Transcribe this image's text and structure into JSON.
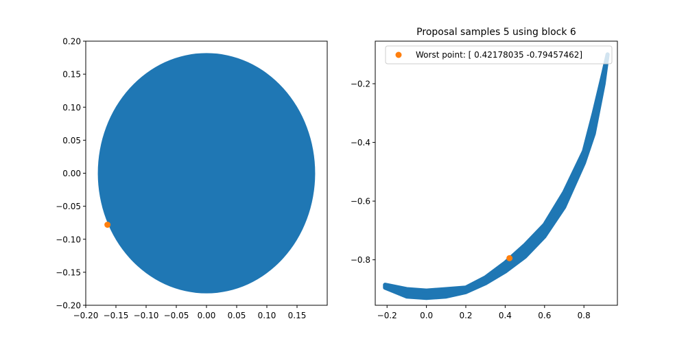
{
  "colors": {
    "background": "#ffffff",
    "scatter": "#1f77b4",
    "highlight": "#ff7f0e",
    "axes": "#000000",
    "legend_border": "#cccccc"
  },
  "chart_data": [
    {
      "type": "scatter",
      "title": "",
      "xlabel": "",
      "ylabel": "",
      "xlim": [
        -0.2,
        0.2
      ],
      "ylim": [
        -0.2,
        0.2
      ],
      "xticks": [
        -0.2,
        -0.15,
        -0.1,
        -0.05,
        0.0,
        0.05,
        0.1,
        0.15
      ],
      "xtick_labels": [
        "−0.20",
        "−0.15",
        "−0.10",
        "−0.05",
        "0.00",
        "0.05",
        "0.10",
        "0.15"
      ],
      "yticks": [
        -0.2,
        -0.15,
        -0.1,
        -0.05,
        0.0,
        0.05,
        0.1,
        0.15,
        0.2
      ],
      "ytick_labels": [
        "−0.20",
        "−0.15",
        "−0.10",
        "−0.05",
        "0.00",
        "0.05",
        "0.10",
        "0.15",
        "0.20"
      ],
      "grid": false,
      "series": [
        {
          "kind": "samples",
          "shape": "filled ellipse",
          "center": [
            0.0,
            0.0
          ],
          "radius_x": 0.18,
          "radius_y": 0.182
        },
        {
          "kind": "point",
          "x": -0.164,
          "y": -0.078
        }
      ]
    },
    {
      "type": "scatter",
      "title": "Proposal samples 5 using block 6",
      "xlabel": "",
      "ylabel": "",
      "xlim": [
        -0.26,
        0.97
      ],
      "ylim": [
        -0.955,
        -0.055
      ],
      "xticks": [
        -0.2,
        0.0,
        0.2,
        0.4,
        0.6,
        0.8
      ],
      "xtick_labels": [
        "−0.2",
        "0.0",
        "0.2",
        "0.4",
        "0.6",
        "0.8"
      ],
      "yticks": [
        -0.8,
        -0.6,
        -0.4,
        -0.2
      ],
      "ytick_labels": [
        "−0.8",
        "−0.6",
        "−0.4",
        "−0.2"
      ],
      "grid": false,
      "legend_position": "upper right",
      "series": [
        {
          "kind": "samples",
          "shape": "curved band",
          "lower_edge": [
            [
              -0.21,
              -0.895
            ],
            [
              -0.1,
              -0.925
            ],
            [
              0.0,
              -0.93
            ],
            [
              0.1,
              -0.925
            ],
            [
              0.2,
              -0.91
            ],
            [
              0.3,
              -0.88
            ],
            [
              0.4,
              -0.84
            ],
            [
              0.5,
              -0.79
            ],
            [
              0.6,
              -0.72
            ],
            [
              0.7,
              -0.62
            ],
            [
              0.8,
              -0.47
            ],
            [
              0.85,
              -0.37
            ],
            [
              0.9,
              -0.2
            ],
            [
              0.92,
              -0.1
            ]
          ],
          "upper_edge": [
            [
              0.92,
              -0.1
            ],
            [
              0.9,
              -0.16
            ],
            [
              0.85,
              -0.3
            ],
            [
              0.8,
              -0.43
            ],
            [
              0.7,
              -0.57
            ],
            [
              0.6,
              -0.68
            ],
            [
              0.5,
              -0.75
            ],
            [
              0.4,
              -0.81
            ],
            [
              0.3,
              -0.86
            ],
            [
              0.2,
              -0.895
            ],
            [
              0.1,
              -0.9
            ],
            [
              0.0,
              -0.905
            ],
            [
              -0.1,
              -0.9
            ],
            [
              -0.21,
              -0.885
            ]
          ]
        },
        {
          "kind": "point",
          "name": "Worst point: [ 0.42178035 -0.79457462]",
          "x": 0.42178035,
          "y": -0.79457462
        }
      ]
    }
  ]
}
